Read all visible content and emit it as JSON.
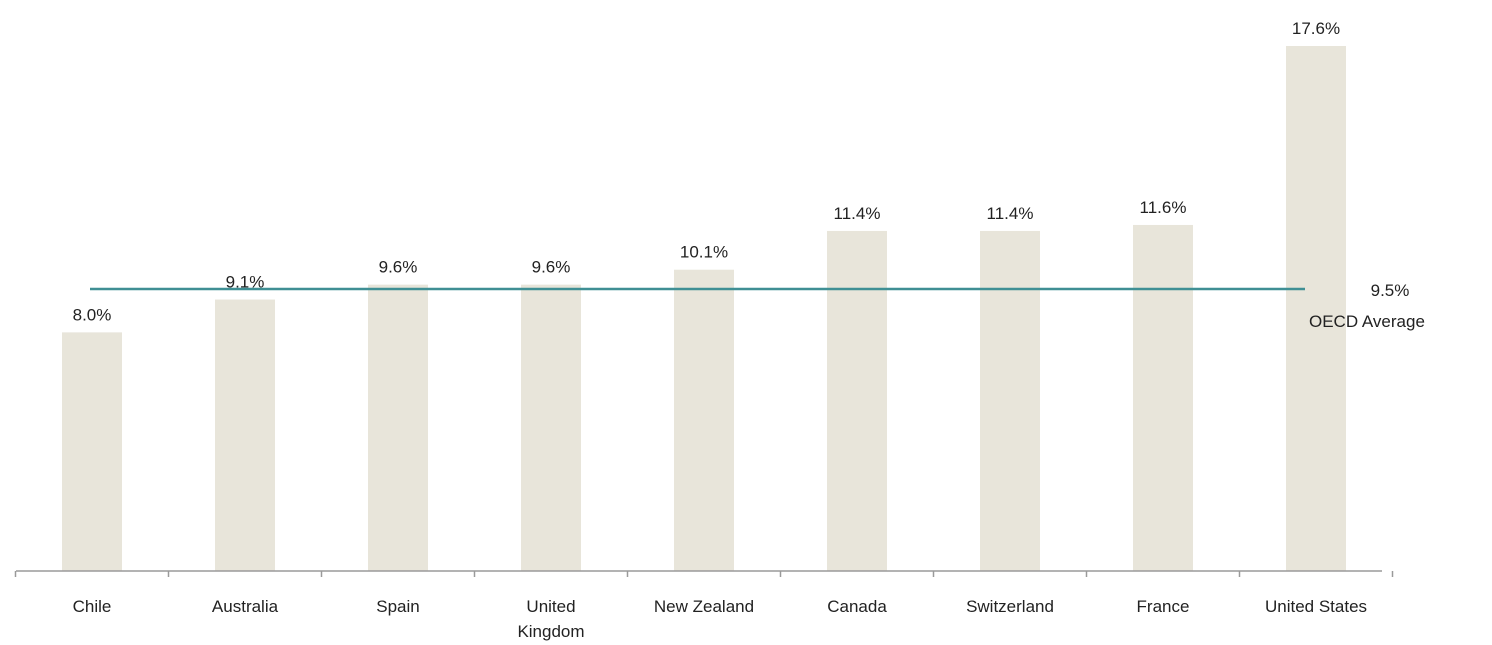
{
  "chart_data": {
    "type": "bar",
    "categories": [
      "Chile",
      "Australia",
      "Spain",
      "United Kingdom",
      "New Zealand",
      "Canada",
      "Switzerland",
      "France",
      "United States"
    ],
    "category_lines": [
      [
        "Chile"
      ],
      [
        "Australia"
      ],
      [
        "Spain"
      ],
      [
        "United",
        "Kingdom"
      ],
      [
        "New Zealand"
      ],
      [
        "Canada"
      ],
      [
        "Switzerland"
      ],
      [
        "France"
      ],
      [
        "United States"
      ]
    ],
    "values": [
      8.0,
      9.1,
      9.6,
      9.6,
      10.1,
      11.4,
      11.4,
      11.6,
      17.6
    ],
    "data_labels": [
      "8.0%",
      "9.1%",
      "9.6%",
      "9.6%",
      "10.1%",
      "11.4%",
      "11.4%",
      "11.6%",
      "17.6%"
    ],
    "reference_line": {
      "value": 9.5,
      "value_label": "9.5%",
      "name": "OECD Average",
      "color": "#3f8f94"
    },
    "bar_color": "#e8e5da",
    "ylim": [
      0,
      17.6
    ],
    "grid": false,
    "title": "",
    "xlabel": "",
    "ylabel": ""
  }
}
